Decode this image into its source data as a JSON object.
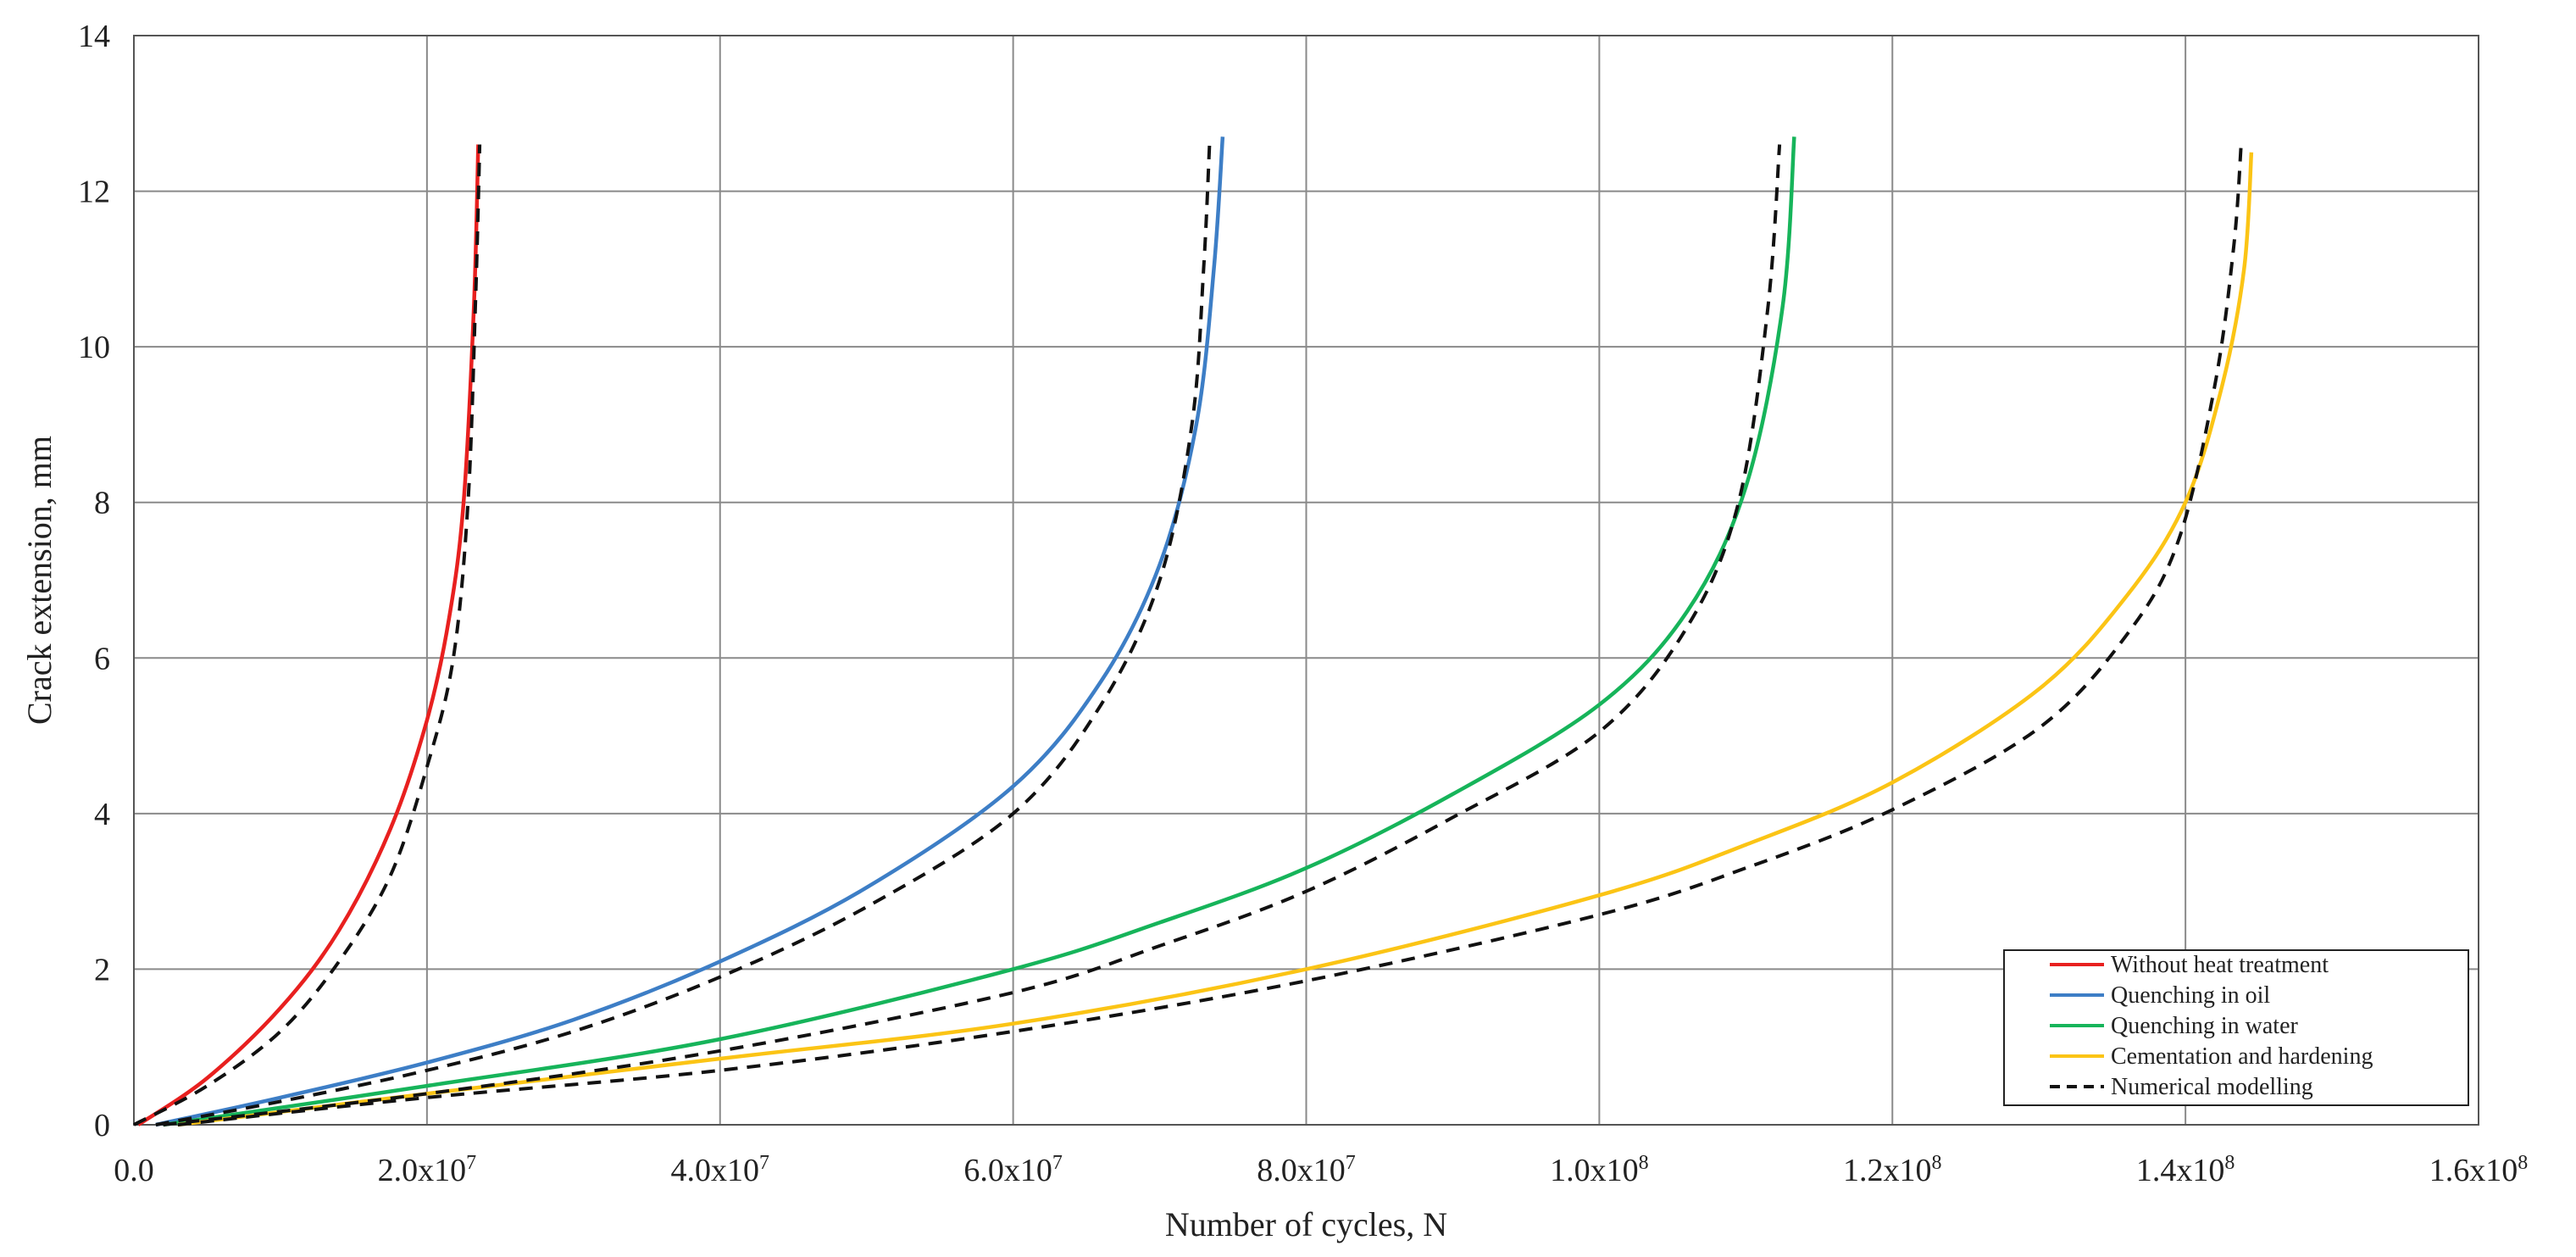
{
  "chart_data": {
    "type": "line",
    "title": "",
    "xlabel": "Number of cycles, N",
    "ylabel": "Crack extension, mm",
    "xlim": [
      0,
      160000000
    ],
    "ylim": [
      0,
      14
    ],
    "grid": true,
    "legend_position": "bottom-right",
    "x_ticks": [
      {
        "value": 0,
        "mantissa": "0.0",
        "exponent": ""
      },
      {
        "value": 20000000,
        "mantissa": "2.0x10",
        "exponent": "7"
      },
      {
        "value": 40000000,
        "mantissa": "4.0x10",
        "exponent": "7"
      },
      {
        "value": 60000000,
        "mantissa": "6.0x10",
        "exponent": "7"
      },
      {
        "value": 80000000,
        "mantissa": "8.0x10",
        "exponent": "7"
      },
      {
        "value": 100000000,
        "mantissa": "1.0x10",
        "exponent": "8"
      },
      {
        "value": 120000000,
        "mantissa": "1.2x10",
        "exponent": "8"
      },
      {
        "value": 140000000,
        "mantissa": "1.4x10",
        "exponent": "8"
      },
      {
        "value": 160000000,
        "mantissa": "1.6x10",
        "exponent": "8"
      }
    ],
    "y_ticks": [
      "0",
      "2",
      "4",
      "6",
      "8",
      "10",
      "12",
      "14"
    ],
    "series": [
      {
        "name": "Without heat treatment",
        "color": "#e8201f",
        "dashed": false,
        "x": [
          300000,
          5000000,
          10000000,
          14000000,
          17500000,
          20000000,
          21500000,
          22500000,
          23200000,
          23500000
        ],
        "y": [
          0,
          0.6,
          1.5,
          2.5,
          3.8,
          5.2,
          6.5,
          8.0,
          10.5,
          12.6
        ]
      },
      {
        "name": "Quenching in oil",
        "color": "#3d7ec6",
        "dashed": false,
        "x": [
          1500000,
          10000000,
          20000000,
          30000000,
          40000000,
          50000000,
          60000000,
          66000000,
          70000000,
          72500000,
          73700000,
          74300000
        ],
        "y": [
          0,
          0.35,
          0.8,
          1.35,
          2.1,
          3.05,
          4.35,
          5.7,
          7.2,
          9.0,
          11.0,
          12.7
        ]
      },
      {
        "name": "Quenching in water",
        "color": "#16b45a",
        "dashed": false,
        "x": [
          2000000,
          20000000,
          40000000,
          60000000,
          70000000,
          80000000,
          90000000,
          100000000,
          106000000,
          110000000,
          112500000,
          113300000
        ],
        "y": [
          0,
          0.5,
          1.1,
          2.0,
          2.6,
          3.3,
          4.25,
          5.4,
          6.6,
          8.2,
          10.5,
          12.7
        ]
      },
      {
        "name": "Cementation and hardening",
        "color": "#fbc415",
        "dashed": false,
        "x": [
          3000000,
          20000000,
          40000000,
          60000000,
          80000000,
          100000000,
          110000000,
          120000000,
          130000000,
          136000000,
          140000000,
          142500000,
          144000000,
          144500000
        ],
        "y": [
          0,
          0.4,
          0.85,
          1.3,
          2.0,
          2.95,
          3.6,
          4.4,
          5.6,
          6.8,
          8.0,
          9.5,
          11.0,
          12.5
        ]
      },
      {
        "name": "Numerical modelling",
        "color": "#111111",
        "dashed": true,
        "x": [
          0,
          5000000,
          10000000,
          14000000,
          17500000,
          20000000,
          21800000,
          22800000,
          23300000,
          23600000
        ],
        "y": [
          0,
          0.5,
          1.2,
          2.1,
          3.2,
          4.6,
          6.0,
          8.0,
          10.5,
          12.6
        ]
      },
      {
        "name": "",
        "color": "#111111",
        "dashed": true,
        "x": [
          1500000,
          10000000,
          20000000,
          30000000,
          40000000,
          50000000,
          60000000,
          66000000,
          70000000,
          72200000,
          73000000,
          73400000
        ],
        "y": [
          0,
          0.3,
          0.7,
          1.2,
          1.9,
          2.8,
          4.0,
          5.4,
          7.0,
          9.0,
          11.0,
          12.6
        ]
      },
      {
        "name": "",
        "color": "#111111",
        "dashed": true,
        "x": [
          2000000,
          20000000,
          40000000,
          60000000,
          70000000,
          80000000,
          90000000,
          100000000,
          106000000,
          109500000,
          111500000,
          112300000
        ],
        "y": [
          0,
          0.4,
          0.95,
          1.7,
          2.3,
          3.0,
          3.95,
          5.05,
          6.4,
          8.0,
          10.5,
          12.6
        ]
      },
      {
        "name": "",
        "color": "#111111",
        "dashed": true,
        "x": [
          3000000,
          20000000,
          40000000,
          60000000,
          80000000,
          100000000,
          110000000,
          120000000,
          130000000,
          136000000,
          139500000,
          142000000,
          143300000,
          143800000
        ],
        "y": [
          0,
          0.35,
          0.7,
          1.2,
          1.85,
          2.7,
          3.3,
          4.05,
          5.1,
          6.3,
          7.5,
          9.5,
          11.3,
          12.6
        ]
      }
    ]
  }
}
